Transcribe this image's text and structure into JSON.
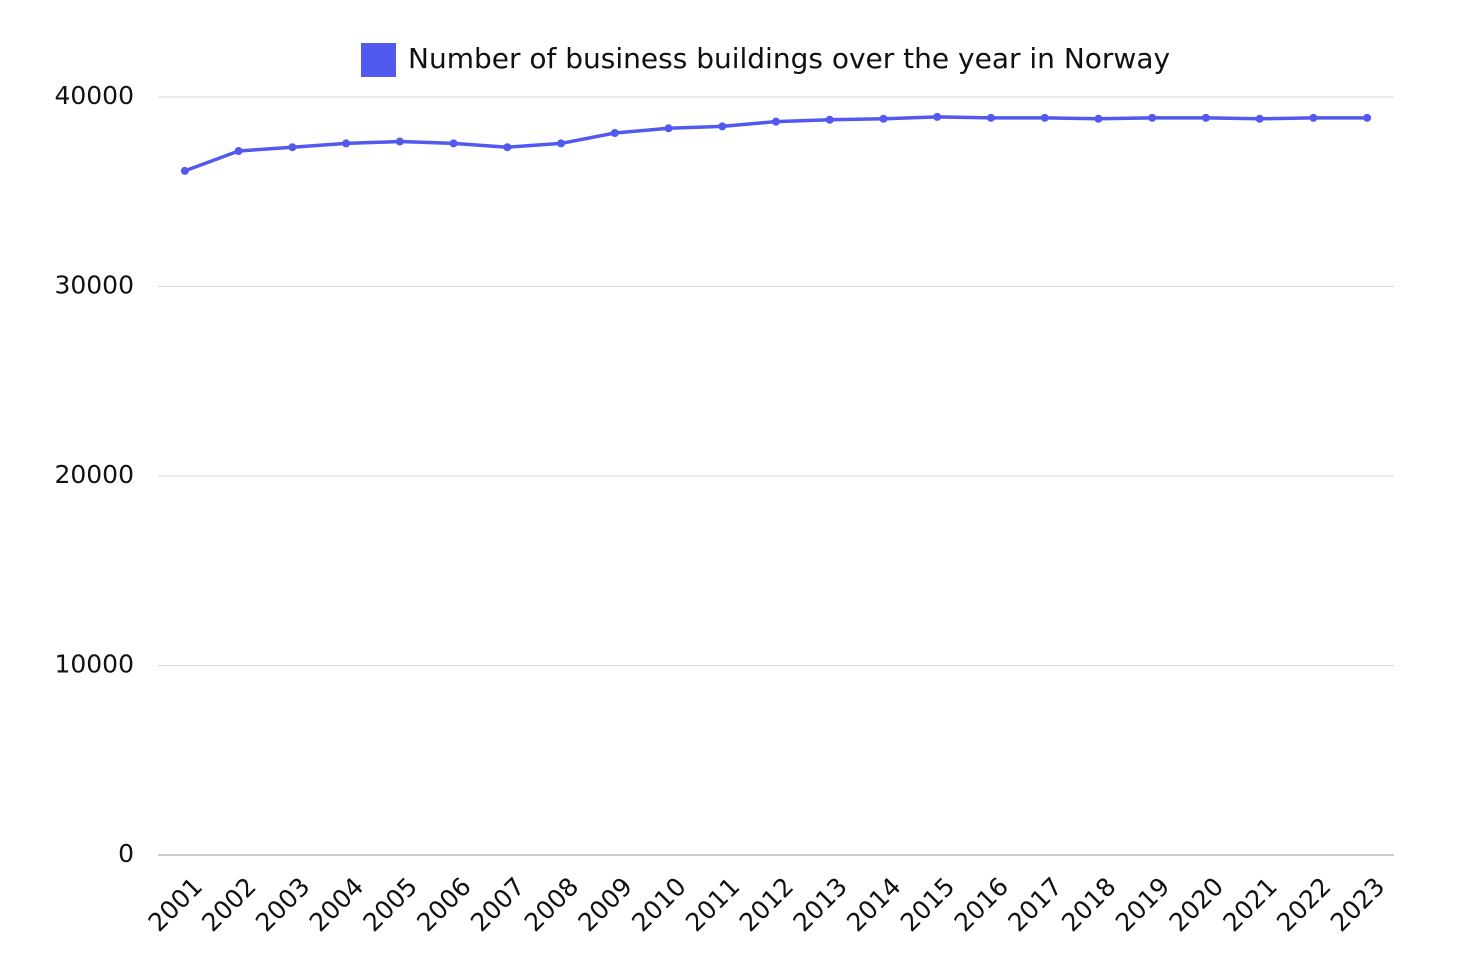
{
  "chart_data": {
    "type": "line",
    "legend": "top",
    "grid": true,
    "categories": [
      "2001",
      "2002",
      "2003",
      "2004",
      "2005",
      "2006",
      "2007",
      "2008",
      "2009",
      "2010",
      "2011",
      "2012",
      "2013",
      "2014",
      "2015",
      "2016",
      "2017",
      "2018",
      "2019",
      "2020",
      "2021",
      "2022",
      "2023"
    ],
    "series": [
      {
        "name": "Number of business buildings over the year in Norway",
        "color": "#5159ee",
        "values": [
          36100,
          37150,
          37350,
          37550,
          37650,
          37550,
          37350,
          37550,
          38100,
          38350,
          38450,
          38700,
          38800,
          38850,
          38950,
          38900,
          38900,
          38850,
          38900,
          38900,
          38850,
          38900,
          38900
        ]
      }
    ],
    "ylim": [
      0,
      40000
    ],
    "yticks": [
      0,
      10000,
      20000,
      30000,
      40000
    ]
  }
}
